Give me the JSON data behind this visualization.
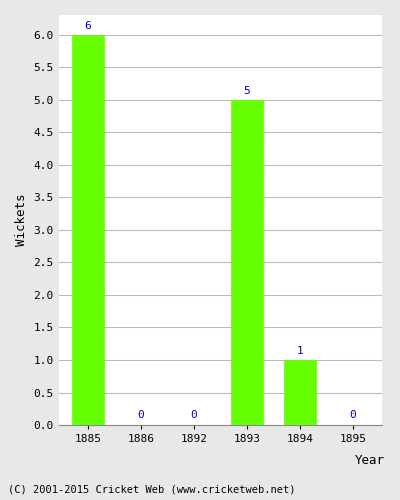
{
  "categories": [
    "1885",
    "1886",
    "1892",
    "1893",
    "1894",
    "1895"
  ],
  "values": [
    6,
    0,
    0,
    5,
    1,
    0
  ],
  "bar_color": "#66ff00",
  "bar_edge_color": "#66ff00",
  "xlabel": "Year",
  "ylabel": "Wickets",
  "ylim": [
    0,
    6.3
  ],
  "yticks": [
    0.0,
    0.5,
    1.0,
    1.5,
    2.0,
    2.5,
    3.0,
    3.5,
    4.0,
    4.5,
    5.0,
    5.5,
    6.0
  ],
  "label_color": "#0000cc",
  "label_fontsize": 8,
  "axis_fontsize": 9,
  "tick_fontsize": 8,
  "footer_text": "(C) 2001-2015 Cricket Web (www.cricketweb.net)",
  "footer_fontsize": 7.5,
  "background_color": "#e8e8e8",
  "plot_bg_color": "#ffffff",
  "grid_color": "#bbbbbb",
  "bar_width": 0.6
}
